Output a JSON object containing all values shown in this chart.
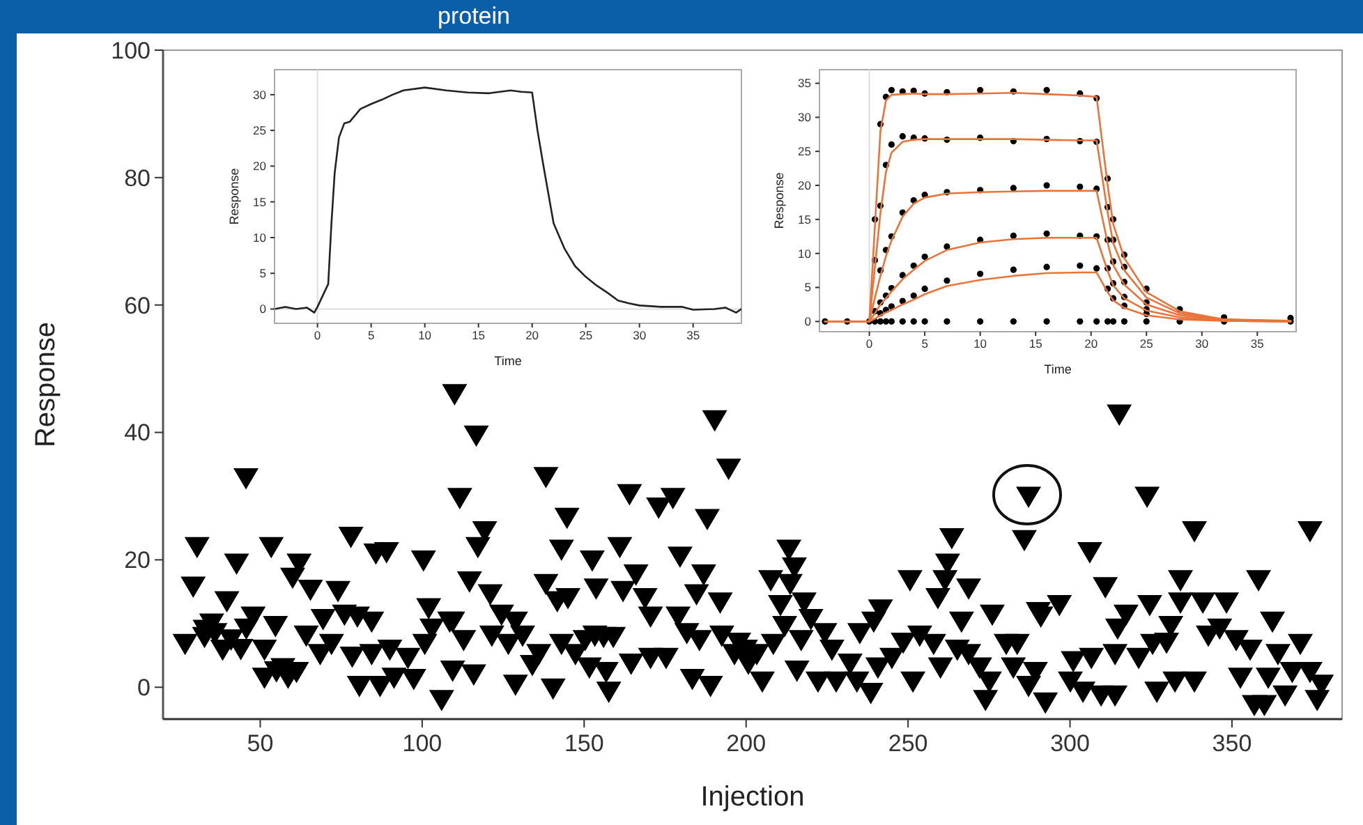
{
  "chart_data": [
    {
      "type": "scatter",
      "title": "protein",
      "xlabel": "Injection",
      "ylabel": "Response",
      "xlim": [
        20,
        384
      ],
      "ylim": [
        -5,
        100
      ],
      "xticks": [
        50,
        100,
        150,
        200,
        250,
        300,
        350
      ],
      "yticks": [
        0,
        20,
        40,
        60,
        80,
        100
      ],
      "grid": false,
      "marker": "triangle",
      "color": "#000000",
      "x": [
        30.5,
        45.6,
        29.3,
        42.7,
        53.4,
        62,
        60,
        65.5,
        78,
        74,
        76,
        85.7,
        89,
        100.4,
        39.7,
        26.8,
        32.8,
        38.4,
        45.7,
        47.8,
        54.7,
        51.3,
        51.3,
        58.6,
        61.2,
        64.2,
        69.4,
        68.5,
        72,
        80,
        84.4,
        80.6,
        78.4,
        84.4,
        87,
        90,
        91.3,
        95.6,
        97.4,
        102,
        103,
        100.8,
        108.5,
        106,
        110,
        111.6,
        33,
        36,
        41,
        35,
        44,
        55,
        57,
        116.7,
        119.3,
        117.2,
        114.6,
        121,
        124.5,
        128.8,
        121.5,
        126.6,
        131,
        109.4,
        112.8,
        109.4,
        115.9,
        128.8,
        134,
        136,
        140.4,
        138.2,
        144.7,
        143,
        138.2,
        141.7,
        145,
        143,
        147.3,
        150.3,
        151.6,
        157.6,
        156.8,
        153.3,
        156,
        159,
        152.5,
        153.7,
        161,
        164,
        166,
        162,
        168.8,
        170.5,
        164.5,
        170.5,
        175.3,
        173,
        177.4,
        179.6,
        186.9,
        184.7,
        179,
        181.7,
        185.6,
        183.4,
        189,
        190.3,
        194.6,
        188,
        192,
        192.5,
        197.7,
        196.4,
        200.7,
        199.8,
        203.3,
        205,
        208.4,
        211.9,
        215.7,
        207.6,
        213.2,
        214.9,
        213.6,
        210.6,
        217.9,
        220,
        217,
        224.3,
        222.2,
        226.5,
        227.8,
        232.1,
        235.1,
        234.2,
        238.5,
        239.4,
        241.5,
        240.7,
        245,
        248.5,
        250.6,
        253.6,
        251.5,
        257.9,
        260,
        263.5,
        262.2,
        261.4,
        259.2,
        268.7,
        266.5,
        265.2,
        268.7,
        272.1,
        273.9,
        275.1,
        276,
        280.3,
        283.7,
        282.5,
        285.9,
        287.2,
        287.2,
        290.2,
        291,
        296.7,
        289.3,
        292.4,
        315.2,
        323.8,
        338.4,
        374.1,
        306.1,
        310.9,
        334.1,
        358.2,
        324.6,
        334.1,
        341,
        348.3,
        317.3,
        314.7,
        331.1,
        342.7,
        346.2,
        362.5,
        371.1,
        351.3,
        355.6,
        301,
        306.6,
        313.9,
        321.2,
        325.5,
        329.8,
        300.1,
        304,
        309.6,
        313.9,
        326.8,
        332.4,
        338.4,
        352.6,
        356.9,
        360,
        361.2,
        366.4,
        368.6,
        374.1,
        377.6,
        376.3,
        364.2
      ],
      "values": [
        22,
        32.8,
        15.8,
        19.4,
        22,
        19.4,
        17.2,
        15.3,
        23.6,
        15.1,
        11.4,
        21,
        21.2,
        19.9,
        13.5,
        6.8,
        7.9,
        5.9,
        9.2,
        11.1,
        9.6,
        5.9,
        1.5,
        1.5,
        2.4,
        8.1,
        10.7,
        5.2,
        6.8,
        11.1,
        10.3,
        0.2,
        4.8,
        5.2,
        0.2,
        5.9,
        1.5,
        4.6,
        1.3,
        12.4,
        9.2,
        6.8,
        10.3,
        -2,
        46,
        29.7,
        9,
        8.5,
        7.5,
        10,
        6,
        2.5,
        3,
        39.5,
        24.5,
        22,
        16.6,
        14.6,
        11.4,
        10.3,
        8.1,
        6.8,
        8.1,
        10.3,
        7.4,
        2.6,
        2,
        0.4,
        3.5,
        5.2,
        -0.2,
        33,
        26.6,
        21.6,
        16.2,
        13.5,
        14,
        6.8,
        5.2,
        7.4,
        3.1,
        -0.7,
        2.4,
        8.1,
        7.9,
        7.9,
        19.9,
        15.5,
        22,
        30.3,
        17.7,
        15.1,
        14,
        11.1,
        3.7,
        4.6,
        4.6,
        28.2,
        29.7,
        20.5,
        17.7,
        14.6,
        11.1,
        8.5,
        7.4,
        1.3,
        0.2,
        41.9,
        34.3,
        26.4,
        13.3,
        8.1,
        7,
        5.2,
        3.7,
        5.9,
        5.2,
        0.9,
        6.8,
        9.6,
        2.6,
        16.8,
        21.6,
        18.8,
        16.2,
        12.9,
        13.3,
        10.7,
        7.4,
        8.5,
        0.9,
        5.9,
        0.9,
        3.7,
        8.5,
        0.9,
        -0.9,
        10.3,
        12.2,
        3.1,
        4.6,
        7,
        16.8,
        8.1,
        0.9,
        6.8,
        3.1,
        23.4,
        19.4,
        16.8,
        14,
        15.5,
        10.3,
        5.9,
        5.2,
        3.1,
        -2,
        0.9,
        11.4,
        6.8,
        6.8,
        3.1,
        23.1,
        29.9,
        0.2,
        11.8,
        11.1,
        12.9,
        2.4,
        -2.4,
        42.8,
        29.9,
        24.5,
        24.5,
        21.2,
        15.7,
        16.8,
        16.8,
        12.9,
        13.3,
        13.3,
        13.3,
        11.4,
        9.2,
        9.6,
        8.1,
        9.2,
        10.3,
        6.8,
        7.4,
        5.9,
        4.1,
        4.6,
        5.2,
        4.6,
        6.8,
        7,
        0.9,
        -0.7,
        -1.3,
        -1.3,
        -0.7,
        0.9,
        0.9,
        1.5,
        -2.8,
        -2.8,
        1.5,
        -1.3,
        2.4,
        2.4,
        0.4,
        -2,
        5.2
      ]
    },
    {
      "type": "line",
      "xlabel": "Time",
      "ylabel": "Response",
      "xlim": [
        -4,
        39.5
      ],
      "ylim": [
        -2,
        33.5
      ],
      "xticks": [
        0,
        5,
        10,
        15,
        20,
        25,
        30,
        35
      ],
      "yticks": [
        0,
        5,
        10,
        15,
        20,
        25,
        30
      ],
      "grid": false,
      "marker": "none",
      "line_style": "solid",
      "color": "#222222",
      "ref_lines": [
        {
          "axis": "x",
          "value": 0,
          "color": "#dddddd"
        },
        {
          "axis": "y",
          "value": 0,
          "color": "#dddddd"
        }
      ],
      "x": [
        -4,
        -3,
        -2,
        -1,
        -0.3,
        0,
        1,
        1.3,
        1.6,
        2,
        2.5,
        3,
        4,
        5,
        6,
        7,
        8,
        10,
        12,
        14,
        16,
        18,
        19,
        20,
        20.5,
        21,
        22,
        23,
        24,
        25,
        26,
        27,
        28,
        29,
        30,
        32,
        34,
        35,
        37,
        38,
        39,
        39.5
      ],
      "values": [
        0,
        0.3,
        0,
        0.2,
        -0.5,
        0.3,
        3.5,
        12,
        19,
        24,
        26,
        26.2,
        28,
        28.7,
        29.3,
        30,
        30.6,
        31,
        30.6,
        30.3,
        30.2,
        30.6,
        30.4,
        30.3,
        25,
        20.5,
        12,
        8.5,
        6,
        4.5,
        3.3,
        2.3,
        1.2,
        0.8,
        0.5,
        0.3,
        0.3,
        -0.1,
        0,
        0.2,
        -0.5,
        0
      ]
    },
    {
      "type": "line",
      "xlabel": "Time",
      "ylabel": "Response",
      "xlim": [
        -4.5,
        38.5
      ],
      "ylim": [
        -1.5,
        37
      ],
      "xticks": [
        0,
        5,
        10,
        15,
        20,
        25,
        30,
        35
      ],
      "yticks": [
        0,
        5,
        10,
        15,
        20,
        25,
        30,
        35
      ],
      "grid": false,
      "line_style": "solid",
      "ref_lines": [
        {
          "axis": "x",
          "value": 0,
          "color": "#dddddd"
        }
      ],
      "x": [
        -4,
        -2,
        0,
        0.5,
        1,
        1.5,
        2,
        3,
        4,
        5,
        7,
        10,
        13,
        16,
        19,
        20.5,
        21.5,
        22,
        23,
        25,
        28,
        32,
        38
      ],
      "series": [
        {
          "type": "scatter",
          "marker": "circle",
          "color": "#000000",
          "values": [
            0,
            0,
            0,
            0,
            0,
            0,
            0,
            0,
            0,
            0,
            0,
            0,
            0,
            0,
            0,
            0,
            0,
            0,
            0,
            0,
            0,
            0,
            0
          ]
        },
        {
          "type": "scatter",
          "marker": "circle",
          "color": "#000000",
          "values": [
            null,
            null,
            null,
            15,
            29,
            33,
            34,
            33.8,
            33.9,
            33.5,
            33.7,
            34,
            33.8,
            34,
            33.5,
            32.8,
            21,
            15,
            9.8,
            4.8,
            1.8,
            0.6,
            0.5
          ]
        },
        {
          "type": "scatter",
          "marker": "circle",
          "color": "#000000",
          "values": [
            null,
            null,
            null,
            9,
            17,
            23,
            26,
            27.2,
            27,
            26.9,
            26.7,
            27,
            26.5,
            26.8,
            26.5,
            26.4,
            16.8,
            12,
            8,
            null,
            null,
            null,
            null
          ]
        },
        {
          "type": "scatter",
          "marker": "circle",
          "color": "#000000",
          "values": [
            null,
            null,
            null,
            null,
            7.5,
            10.5,
            12.5,
            16,
            17.8,
            18.6,
            19,
            19.3,
            19.6,
            20,
            19.8,
            19.5,
            12,
            8.8,
            5.8,
            2.8,
            null,
            null,
            null
          ]
        },
        {
          "type": "scatter",
          "marker": "circle",
          "color": "#000000",
          "values": [
            null,
            null,
            null,
            1.5,
            2.8,
            3.8,
            4.9,
            6.8,
            8.2,
            9.5,
            11,
            12,
            12.6,
            12.9,
            12.6,
            12.5,
            7.8,
            5.6,
            3.6,
            1.8,
            null,
            null,
            null
          ]
        },
        {
          "type": "scatter",
          "marker": "circle",
          "color": "#000000",
          "values": [
            null,
            null,
            null,
            null,
            1.2,
            1.7,
            2.2,
            3,
            3.8,
            4.8,
            6,
            7,
            7.6,
            8,
            8.2,
            7.8,
            4.8,
            3.4,
            2.3,
            1.1,
            null,
            null,
            null
          ]
        },
        {
          "color": "#e8743b",
          "values": [
            0,
            0,
            0,
            14,
            28,
            32.5,
            33.3,
            33.4,
            33.5,
            33.4,
            33.4,
            33.5,
            33.6,
            33.4,
            33.2,
            33,
            20,
            14.3,
            9.3,
            4.3,
            1.5,
            0.3,
            0.1
          ]
        },
        {
          "color": "#e8743b",
          "values": [
            0,
            0,
            0,
            8,
            16,
            22,
            24.8,
            26.4,
            26.7,
            26.8,
            26.8,
            26.8,
            26.8,
            26.7,
            26.6,
            26.6,
            16,
            11.5,
            7.5,
            3.5,
            1.2,
            0.3,
            0
          ]
        },
        {
          "color": "#e8743b",
          "values": [
            0,
            0,
            0,
            3.5,
            6.7,
            9.6,
            11.9,
            15.4,
            17.3,
            18.2,
            18.8,
            19,
            19.1,
            19.2,
            19.2,
            19.2,
            11.5,
            8.3,
            5.4,
            2.5,
            0.9,
            0.2,
            0
          ]
        },
        {
          "color": "#e8743b",
          "values": [
            0,
            0,
            0,
            1.2,
            2.5,
            3.4,
            4.4,
            6.2,
            7.6,
            8.9,
            10.5,
            11.6,
            12.1,
            12.3,
            12.3,
            12.3,
            7.4,
            5.3,
            3.4,
            1.6,
            0.6,
            0.1,
            0
          ]
        },
        {
          "color": "#e8743b",
          "values": [
            0,
            0,
            0,
            0.4,
            0.9,
            1.3,
            1.7,
            2.5,
            3.2,
            4,
            5.2,
            6.1,
            6.7,
            7.1,
            7.2,
            7.2,
            4.3,
            3.1,
            2,
            0.9,
            0.3,
            0.1,
            0
          ]
        }
      ]
    }
  ]
}
